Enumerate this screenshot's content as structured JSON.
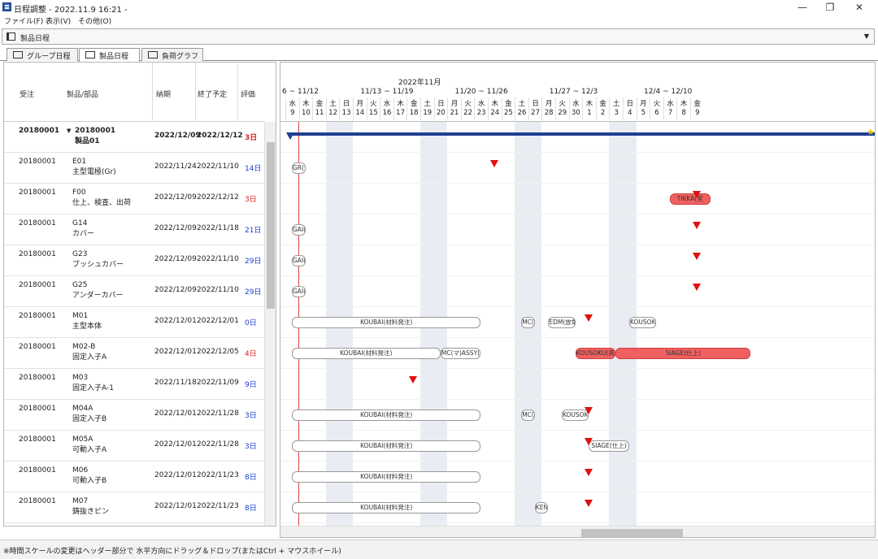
{
  "window": {
    "title": "日程調整 - 2022.11.9 16:21 -",
    "min": "—",
    "max": "❐",
    "close": "✕"
  },
  "menu": [
    "ファイル(F)",
    "表示(V)",
    "その他(O)"
  ],
  "product_selector": {
    "value": "製品日程"
  },
  "tabs": [
    {
      "label": "グループ日程"
    },
    {
      "label": "製品日程"
    },
    {
      "label": "負荷グラフ"
    }
  ],
  "table": {
    "headers": {
      "order": "受注",
      "part": "製品/部品",
      "due": "納期",
      "end": "終了予定",
      "eval": "評価"
    },
    "rows": [
      {
        "order": "20180001",
        "code": "20180001",
        "name": "製品01",
        "due": "2022/12/09",
        "end": "2022/12/12",
        "eval": "3日",
        "eval_color": "#e02020",
        "parent": true
      },
      {
        "order": "20180001",
        "code": "E01",
        "name": "主型電極(Gr)",
        "due": "2022/11/24",
        "end": "2022/11/10",
        "eval": "14日",
        "eval_color": "#1f3fd0"
      },
      {
        "order": "20180001",
        "code": "F00",
        "name": "仕上、検査、出荷",
        "due": "2022/12/09",
        "end": "2022/12/12",
        "eval": "3日",
        "eval_color": "#e02020"
      },
      {
        "order": "20180001",
        "code": "G14",
        "name": "カバー",
        "due": "2022/12/09",
        "end": "2022/11/18",
        "eval": "21日",
        "eval_color": "#1f3fd0"
      },
      {
        "order": "20180001",
        "code": "G23",
        "name": "ブッシュカバー",
        "due": "2022/12/09",
        "end": "2022/11/10",
        "eval": "29日",
        "eval_color": "#1f3fd0"
      },
      {
        "order": "20180001",
        "code": "G25",
        "name": "アンダーカバー",
        "due": "2022/12/09",
        "end": "2022/11/10",
        "eval": "29日",
        "eval_color": "#1f3fd0"
      },
      {
        "order": "20180001",
        "code": "M01",
        "name": "主型本体",
        "due": "2022/12/01",
        "end": "2022/12/01",
        "eval": "0日",
        "eval_color": "#1f3fd0"
      },
      {
        "order": "20180001",
        "code": "M02-B",
        "name": "固定入子A",
        "due": "2022/12/01",
        "end": "2022/12/05",
        "eval": "4日",
        "eval_color": "#e02020"
      },
      {
        "order": "20180001",
        "code": "M03",
        "name": "固定入子A-1",
        "due": "2022/11/18",
        "end": "2022/11/09",
        "eval": "9日",
        "eval_color": "#1f3fd0"
      },
      {
        "order": "20180001",
        "code": "M04A",
        "name": "固定入子B",
        "due": "2022/12/01",
        "end": "2022/11/28",
        "eval": "3日",
        "eval_color": "#1f3fd0"
      },
      {
        "order": "20180001",
        "code": "M05A",
        "name": "可動入子A",
        "due": "2022/12/01",
        "end": "2022/11/28",
        "eval": "3日",
        "eval_color": "#1f3fd0"
      },
      {
        "order": "20180001",
        "code": "M06",
        "name": "可動入子B",
        "due": "2022/12/01",
        "end": "2022/11/23",
        "eval": "8日",
        "eval_color": "#1f3fd0"
      },
      {
        "order": "20180001",
        "code": "M07",
        "name": "鋳抜きピン",
        "due": "2022/12/01",
        "end": "2022/11/23",
        "eval": "8日",
        "eval_color": "#1f3fd0"
      }
    ]
  },
  "gantt": {
    "month": "2022年11月",
    "weeks": [
      "6 ~ 11/12",
      "11/13 ~ 11/19",
      "11/20 ~ 11/26",
      "11/27 ~ 12/3",
      "12/4 ~ 12/10"
    ],
    "days": [
      {
        "w": "水",
        "d": "9"
      },
      {
        "w": "木",
        "d": "10"
      },
      {
        "w": "金",
        "d": "11"
      },
      {
        "w": "土",
        "d": "12"
      },
      {
        "w": "日",
        "d": "13"
      },
      {
        "w": "月",
        "d": "14"
      },
      {
        "w": "火",
        "d": "15"
      },
      {
        "w": "水",
        "d": "16"
      },
      {
        "w": "木",
        "d": "17"
      },
      {
        "w": "金",
        "d": "18"
      },
      {
        "w": "土",
        "d": "19"
      },
      {
        "w": "日",
        "d": "20"
      },
      {
        "w": "月",
        "d": "21"
      },
      {
        "w": "火",
        "d": "22"
      },
      {
        "w": "水",
        "d": "23"
      },
      {
        "w": "木",
        "d": "24"
      },
      {
        "w": "金",
        "d": "25"
      },
      {
        "w": "土",
        "d": "26"
      },
      {
        "w": "日",
        "d": "27"
      },
      {
        "w": "月",
        "d": "28"
      },
      {
        "w": "火",
        "d": "29"
      },
      {
        "w": "水",
        "d": "30"
      },
      {
        "w": "木",
        "d": "1"
      },
      {
        "w": "金",
        "d": "2"
      },
      {
        "w": "土",
        "d": "3"
      },
      {
        "w": "日",
        "d": "4"
      },
      {
        "w": "月",
        "d": "5"
      },
      {
        "w": "火",
        "d": "6"
      },
      {
        "w": "水",
        "d": "7"
      },
      {
        "w": "木",
        "d": "8"
      },
      {
        "w": "金",
        "d": "9"
      }
    ],
    "tasks": [
      {
        "row": 1,
        "label": "GR(グ",
        "start": "11/9",
        "end": "11/10",
        "red": false
      },
      {
        "row": 2,
        "label": "TIKKA(室",
        "start": "12/7",
        "end": "12/10",
        "red": true
      },
      {
        "row": 3,
        "label": "GAI(外",
        "start": "11/9",
        "end": "11/10",
        "red": false
      },
      {
        "row": 4,
        "label": "GAI(外",
        "start": "11/9",
        "end": "11/10",
        "red": false
      },
      {
        "row": 5,
        "label": "GAI(外",
        "start": "11/9",
        "end": "11/10",
        "red": false
      },
      {
        "row": 6,
        "label": "KOUBAI(材料発注)",
        "start": "11/9",
        "end": "11/23",
        "red": false
      },
      {
        "row": 6,
        "label": "MC(マ",
        "start": "11/26",
        "end": "11/27",
        "red": false
      },
      {
        "row": 6,
        "label": "EDM(放電)",
        "start": "11/28",
        "end": "11/30",
        "red": false
      },
      {
        "row": 6,
        "label": "KOUSOKU(高",
        "start": "12/4",
        "end": "12/6",
        "red": false
      },
      {
        "row": 7,
        "label": "KOUBAI(材料発注)",
        "start": "11/9",
        "end": "11/20",
        "red": false
      },
      {
        "row": 7,
        "label": "MC(マ)ASSY(",
        "start": "11/20",
        "end": "11/23",
        "red": false
      },
      {
        "row": 7,
        "label": "KOUSOKU(高速)",
        "start": "11/30",
        "end": "12/3",
        "red": true
      },
      {
        "row": 7,
        "label": "SIAGE(仕上)",
        "start": "12/3",
        "end": "12/13",
        "red": true
      },
      {
        "row": 9,
        "label": "KOUBAI(材料発注)",
        "start": "11/9",
        "end": "11/23",
        "red": false
      },
      {
        "row": 9,
        "label": "MC(マ",
        "start": "11/26",
        "end": "11/27",
        "red": false
      },
      {
        "row": 9,
        "label": "KOUSOKU",
        "start": "11/29",
        "end": "12/1",
        "red": false
      },
      {
        "row": 10,
        "label": "KOUBAI(材料発注)",
        "start": "11/9",
        "end": "11/23",
        "red": false
      },
      {
        "row": 10,
        "label": "SIAGE(仕上)",
        "start": "12/1",
        "end": "12/4",
        "red": false
      },
      {
        "row": 11,
        "label": "KOUBAI(材料発注)",
        "start": "11/9",
        "end": "11/23",
        "red": false
      },
      {
        "row": 12,
        "label": "KOUBAI(材料発注)",
        "start": "11/9",
        "end": "11/23",
        "red": false
      },
      {
        "row": 12,
        "label": "KENS",
        "start": "11/27",
        "end": "11/28",
        "red": false
      }
    ],
    "markers": [
      {
        "row": 1,
        "date": "11/24"
      },
      {
        "row": 2,
        "date": "12/9"
      },
      {
        "row": 3,
        "date": "12/9"
      },
      {
        "row": 4,
        "date": "12/9"
      },
      {
        "row": 5,
        "date": "12/9"
      },
      {
        "row": 6,
        "date": "12/1"
      },
      {
        "row": 8,
        "date": "11/18"
      },
      {
        "row": 9,
        "date": "12/1"
      },
      {
        "row": 10,
        "date": "12/1"
      },
      {
        "row": 11,
        "date": "12/1"
      },
      {
        "row": 12,
        "date": "12/1"
      }
    ]
  },
  "status_bar": "※時間スケールの変更はヘッダー部分で 水平方向にドラッグ＆ドロップ(またはCtrl + マウスホイール)",
  "colors": {
    "accent": "#1f3f90",
    "late": "#e02020",
    "ok": "#1f3fd0",
    "task_red": "#f06060",
    "weekend": "#e9edf3"
  }
}
